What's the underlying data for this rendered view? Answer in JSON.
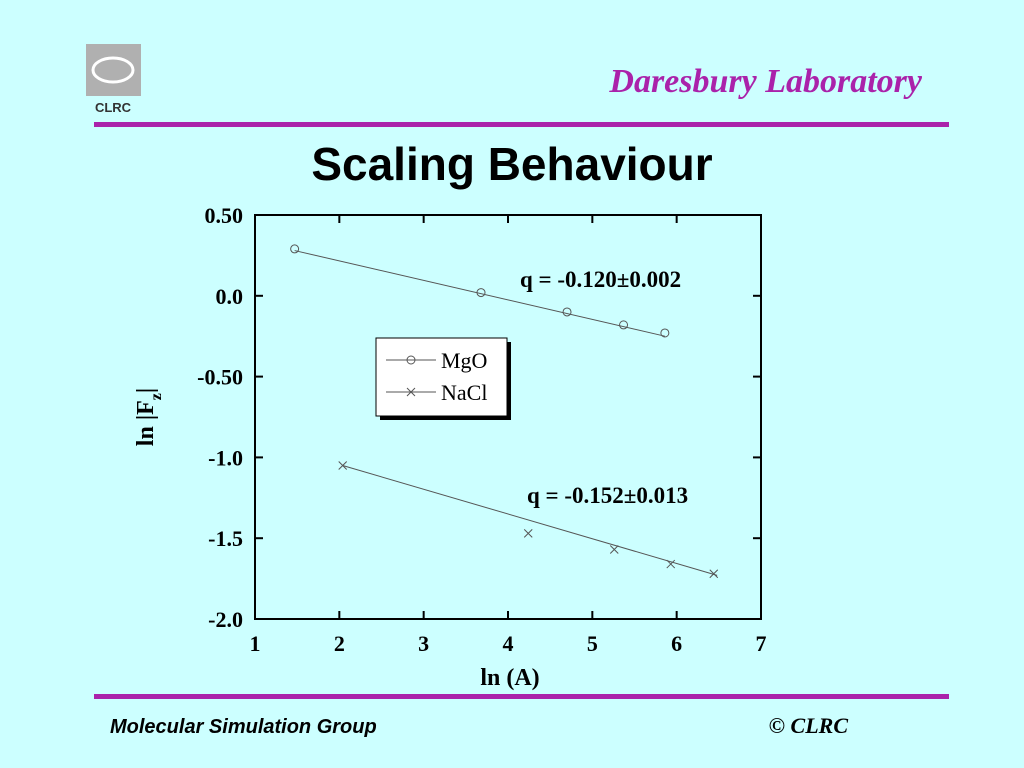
{
  "header": {
    "logo_text": "CLRC",
    "lab_name": "Daresbury Laboratory"
  },
  "chart_data": {
    "type": "scatter",
    "title": "Scaling Behaviour",
    "x_label": "ln (A)",
    "y_label": {
      "text": "ln |F",
      "subscript": "z",
      "suffix": "|"
    },
    "xlim": [
      1,
      7
    ],
    "xticks": [
      1,
      2,
      3,
      4,
      5,
      6,
      7
    ],
    "ylim": [
      -2.0,
      0.5
    ],
    "yticks": [
      {
        "value": 0.5,
        "label": "0.50"
      },
      {
        "value": 0,
        "label": "0.0"
      },
      {
        "value": -0.5,
        "label": "-0.50"
      },
      {
        "value": -1,
        "label": "-1.0"
      },
      -1.5,
      {
        "value": -2,
        "label": "-2.0"
      }
    ],
    "series": [
      {
        "name": "MgO",
        "marker": "circle",
        "color": "#555555",
        "x": [
          1.47,
          3.68,
          4.7,
          5.37,
          5.86
        ],
        "values": [
          0.29,
          0.02,
          -0.1,
          -0.18,
          -0.23
        ],
        "fit": {
          "x": [
            1.47,
            5.86
          ],
          "values": [
            0.28,
            -0.25
          ]
        }
      },
      {
        "name": "NaCl",
        "marker": "x",
        "color": "#555555",
        "x": [
          2.04,
          4.24,
          5.26,
          5.93,
          6.44
        ],
        "values": [
          -1.05,
          -1.47,
          -1.57,
          -1.66,
          -1.72
        ],
        "fit": {
          "x": [
            2.04,
            6.48
          ],
          "values": [
            -1.05,
            -1.73
          ]
        }
      }
    ],
    "annotations": [
      "q = -0.120±0.002",
      "q = -0.152±0.013"
    ]
  },
  "footer": {
    "left": "Molecular Simulation Group",
    "right": "© CLRC"
  }
}
